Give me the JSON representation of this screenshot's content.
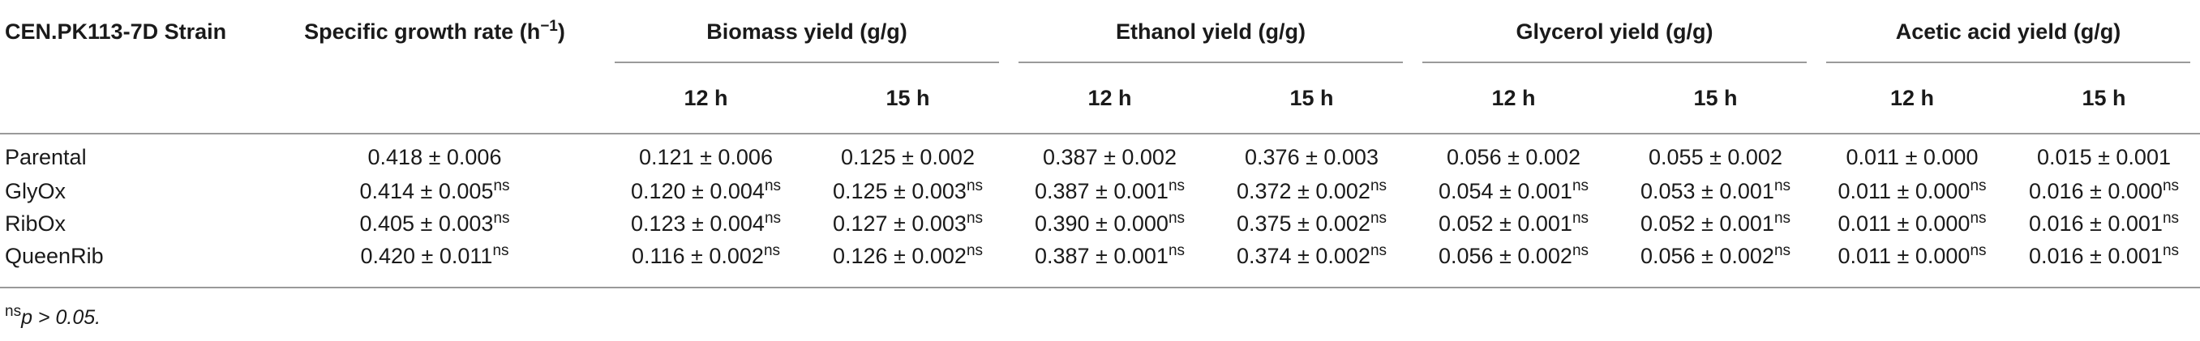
{
  "table": {
    "strain_header": "CEN.PK113-7D Strain",
    "rate_header_pre": "Specific growth rate (h",
    "rate_header_exp": "−1",
    "rate_header_post": ")",
    "groups": [
      {
        "label": "Biomass yield (g/g)",
        "sub": [
          "12 h",
          "15 h"
        ]
      },
      {
        "label": "Ethanol yield (g/g)",
        "sub": [
          "12 h",
          "15 h"
        ]
      },
      {
        "label": "Glycerol yield (g/g)",
        "sub": [
          "12 h",
          "15 h"
        ]
      },
      {
        "label": "Acetic acid yield (g/g)",
        "sub": [
          "12 h",
          "15 h"
        ]
      }
    ],
    "rows": [
      {
        "strain": "Parental",
        "cells": [
          {
            "v": "0.418 ± 0.006",
            "s": ""
          },
          {
            "v": "0.121 ± 0.006",
            "s": ""
          },
          {
            "v": "0.125 ± 0.002",
            "s": ""
          },
          {
            "v": "0.387 ± 0.002",
            "s": ""
          },
          {
            "v": "0.376 ± 0.003",
            "s": ""
          },
          {
            "v": "0.056 ± 0.002",
            "s": ""
          },
          {
            "v": "0.055 ± 0.002",
            "s": ""
          },
          {
            "v": "0.011 ± 0.000",
            "s": ""
          },
          {
            "v": "0.015 ± 0.001",
            "s": ""
          }
        ]
      },
      {
        "strain": "GlyOx",
        "cells": [
          {
            "v": "0.414 ± 0.005",
            "s": "ns"
          },
          {
            "v": "0.120 ± 0.004",
            "s": "ns"
          },
          {
            "v": "0.125 ± 0.003",
            "s": "ns"
          },
          {
            "v": "0.387 ± 0.001",
            "s": "ns"
          },
          {
            "v": "0.372 ± 0.002",
            "s": "ns"
          },
          {
            "v": "0.054 ± 0.001",
            "s": "ns"
          },
          {
            "v": "0.053 ± 0.001",
            "s": "ns"
          },
          {
            "v": "0.011 ± 0.000",
            "s": "ns"
          },
          {
            "v": "0.016 ± 0.000",
            "s": "ns"
          }
        ]
      },
      {
        "strain": "RibOx",
        "cells": [
          {
            "v": "0.405 ± 0.003",
            "s": "ns"
          },
          {
            "v": "0.123 ± 0.004",
            "s": "ns"
          },
          {
            "v": "0.127 ± 0.003",
            "s": "ns"
          },
          {
            "v": "0.390 ± 0.000",
            "s": "ns"
          },
          {
            "v": "0.375 ± 0.002",
            "s": "ns"
          },
          {
            "v": "0.052 ± 0.001",
            "s": "ns"
          },
          {
            "v": "0.052 ± 0.001",
            "s": "ns"
          },
          {
            "v": "0.011 ± 0.000",
            "s": "ns"
          },
          {
            "v": "0.016 ± 0.001",
            "s": "ns"
          }
        ]
      },
      {
        "strain": "QueenRib",
        "cells": [
          {
            "v": "0.420 ± 0.011",
            "s": "ns"
          },
          {
            "v": "0.116 ± 0.002",
            "s": "ns"
          },
          {
            "v": "0.126 ± 0.002",
            "s": "ns"
          },
          {
            "v": "0.387 ± 0.001",
            "s": "ns"
          },
          {
            "v": "0.374 ± 0.002",
            "s": "ns"
          },
          {
            "v": "0.056 ± 0.002",
            "s": "ns"
          },
          {
            "v": "0.056 ± 0.002",
            "s": "ns"
          },
          {
            "v": "0.011 ± 0.000",
            "s": "ns"
          },
          {
            "v": "0.016 ± 0.001",
            "s": "ns"
          }
        ]
      }
    ]
  },
  "footnote": {
    "sup": "ns",
    "text": "p > 0.05."
  }
}
